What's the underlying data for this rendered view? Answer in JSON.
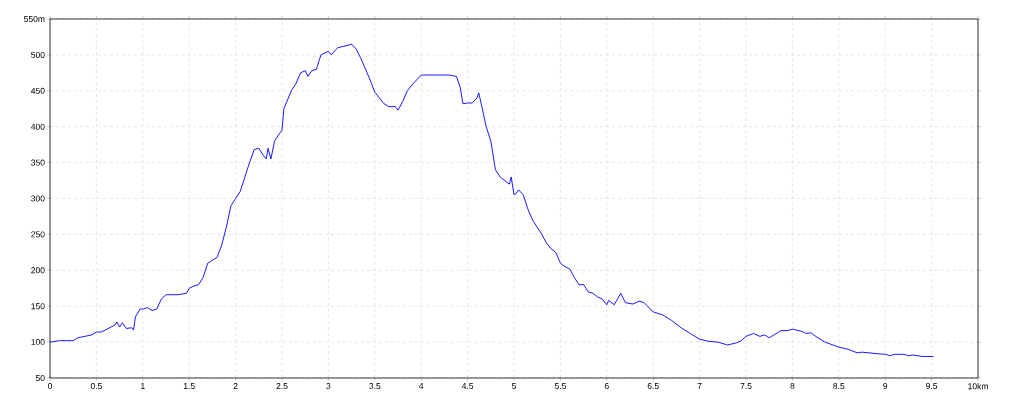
{
  "chart_data": {
    "type": "line",
    "xlim": [
      0,
      10
    ],
    "ylim": [
      50,
      550
    ],
    "xticks": [
      0,
      0.5,
      1,
      1.5,
      2,
      2.5,
      3,
      3.5,
      4,
      4.5,
      5,
      5.5,
      6,
      6.5,
      7,
      7.5,
      8,
      8.5,
      9,
      9.5,
      {
        "value": 10,
        "label": "10km"
      }
    ],
    "yticks": [
      50,
      100,
      150,
      200,
      250,
      300,
      350,
      400,
      450,
      500,
      {
        "value": 550,
        "label": "550m"
      }
    ],
    "grid": true,
    "marker": "none",
    "line_style": "solid",
    "series": [
      {
        "color": "#0000ff",
        "x": [
          0,
          0.1,
          0.25,
          0.3,
          0.45,
          0.5,
          0.55,
          0.6,
          0.7,
          0.72,
          0.75,
          0.78,
          0.82,
          0.88,
          0.9,
          0.92,
          0.97,
          1.0,
          1.05,
          1.1,
          1.15,
          1.2,
          1.25,
          1.38,
          1.47,
          1.5,
          1.55,
          1.6,
          1.65,
          1.7,
          1.75,
          1.8,
          1.85,
          1.9,
          1.95,
          2.0,
          2.05,
          2.1,
          2.15,
          2.2,
          2.25,
          2.3,
          2.33,
          2.35,
          2.38,
          2.42,
          2.47,
          2.5,
          2.52,
          2.6,
          2.65,
          2.7,
          2.75,
          2.78,
          2.82,
          2.87,
          2.92,
          3.0,
          3.03,
          3.1,
          3.2,
          3.25,
          3.3,
          3.35,
          3.4,
          3.45,
          3.5,
          3.55,
          3.6,
          3.65,
          3.72,
          3.75,
          3.8,
          3.85,
          3.9,
          3.95,
          4.0,
          4.3,
          4.38,
          4.42,
          4.45,
          4.5,
          4.55,
          4.6,
          4.62,
          4.65,
          4.7,
          4.75,
          4.8,
          4.85,
          4.9,
          4.95,
          4.97,
          5.0,
          5.03,
          5.05,
          5.1,
          5.15,
          5.2,
          5.25,
          5.3,
          5.35,
          5.4,
          5.45,
          5.5,
          5.55,
          5.6,
          5.65,
          5.7,
          5.75,
          5.8,
          5.85,
          5.9,
          5.95,
          6.0,
          6.02,
          6.08,
          6.15,
          6.2,
          6.28,
          6.35,
          6.4,
          6.5,
          6.6,
          6.7,
          6.8,
          6.9,
          7.0,
          7.1,
          7.2,
          7.3,
          7.4,
          7.45,
          7.5,
          7.58,
          7.65,
          7.7,
          7.75,
          7.8,
          7.88,
          7.95,
          8.0,
          8.1,
          8.15,
          8.2,
          8.25,
          8.35,
          8.5,
          8.6,
          8.7,
          8.75,
          8.9,
          9.0,
          9.05,
          9.1,
          9.2,
          9.25,
          9.3,
          9.4,
          9.52
        ],
        "values": [
          100,
          102,
          102,
          106,
          110,
          114,
          114,
          117,
          124,
          128,
          121,
          127,
          119,
          120,
          117,
          135,
          146,
          146,
          148,
          144,
          146,
          160,
          166,
          166,
          168,
          175,
          178,
          180,
          190,
          210,
          214,
          218,
          235,
          260,
          290,
          300,
          310,
          330,
          350,
          368,
          370,
          360,
          355,
          370,
          355,
          380,
          390,
          395,
          425,
          450,
          460,
          475,
          478,
          470,
          478,
          480,
          500,
          505,
          500,
          510,
          513,
          515,
          508,
          495,
          480,
          465,
          448,
          440,
          432,
          428,
          428,
          423,
          435,
          450,
          458,
          465,
          472,
          472,
          470,
          455,
          432,
          433,
          433,
          440,
          447,
          430,
          400,
          380,
          340,
          330,
          325,
          320,
          330,
          305,
          308,
          312,
          305,
          285,
          270,
          260,
          250,
          238,
          230,
          225,
          210,
          205,
          202,
          190,
          180,
          180,
          170,
          168,
          163,
          160,
          152,
          158,
          152,
          168,
          155,
          153,
          157,
          155,
          142,
          138,
          130,
          120,
          112,
          104,
          101,
          100,
          96,
          99,
          102,
          108,
          112,
          108,
          110,
          106,
          110,
          116,
          116,
          118,
          115,
          112,
          113,
          108,
          100,
          93,
          90,
          85,
          86,
          84,
          83,
          81,
          83,
          83,
          81,
          82,
          80,
          80
        ]
      }
    ]
  }
}
